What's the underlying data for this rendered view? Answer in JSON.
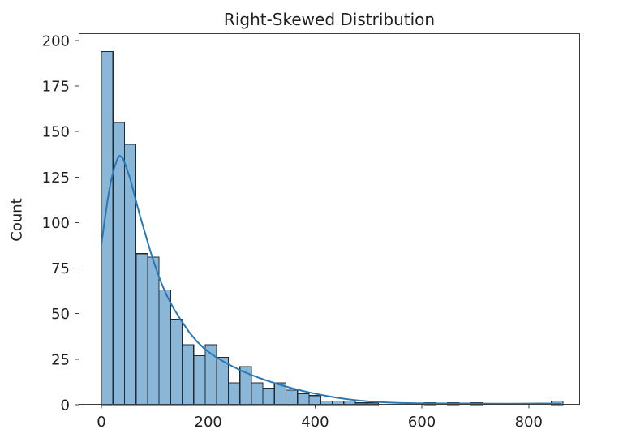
{
  "figure": {
    "title": "Right-Skewed Distribution",
    "y_axis_label": "Count"
  },
  "chart_data": {
    "type": "bar",
    "subtype": "histogram_with_kde",
    "title": "Right-Skewed Distribution",
    "xlabel": "",
    "ylabel": "Count",
    "grid": false,
    "legend_position": "none",
    "x_ticks": [
      0,
      200,
      400,
      600,
      800
    ],
    "y_ticks": [
      0,
      25,
      50,
      75,
      100,
      125,
      150,
      175,
      200
    ],
    "xlim": [
      -42.5,
      896
    ],
    "ylim": [
      0,
      204
    ],
    "histogram": {
      "bin_start": 0,
      "bin_width": 21.6,
      "counts": [
        194,
        155,
        143,
        83,
        81,
        63,
        47,
        33,
        27,
        33,
        26,
        12,
        21,
        12,
        9,
        12,
        8,
        6,
        5,
        2,
        2,
        2,
        1,
        1,
        0,
        0,
        0,
        0,
        1,
        0,
        1,
        0,
        1,
        0,
        0,
        0,
        0,
        0,
        0,
        2
      ]
    },
    "kde_line": {
      "x": [
        0,
        6,
        12,
        18,
        24,
        30,
        34,
        40,
        46,
        54,
        62,
        72,
        82,
        92,
        102,
        112,
        124,
        136,
        150,
        164,
        178,
        192,
        206,
        220,
        234,
        248,
        262,
        278,
        294,
        310,
        326,
        342,
        358,
        374,
        390,
        406,
        422,
        438,
        454,
        470,
        486,
        502,
        520,
        540,
        560,
        590,
        620,
        650,
        680,
        710,
        740,
        770,
        800,
        825,
        845,
        860
      ],
      "y": [
        88,
        101,
        113,
        123,
        130,
        135,
        136.8,
        135.5,
        131,
        124,
        115,
        104,
        94,
        84,
        75,
        67,
        59,
        52.5,
        46,
        40,
        35,
        31,
        27.8,
        25.2,
        22.8,
        20.7,
        18.7,
        16.7,
        14.9,
        13.2,
        11.7,
        10.3,
        9,
        7.8,
        6.7,
        5.7,
        4.8,
        4,
        3.3,
        2.7,
        2.2,
        1.8,
        1.45,
        1.15,
        0.95,
        0.78,
        0.7,
        0.68,
        0.66,
        0.6,
        0.55,
        0.55,
        0.6,
        0.65,
        0.6,
        0.5
      ]
    },
    "colors": {
      "bar_fill": "#8ab6d8",
      "bar_edge": "#222a31",
      "kde_line": "#2878b5",
      "text": "#1f1f1f",
      "spine": "#3c3c3c"
    }
  }
}
